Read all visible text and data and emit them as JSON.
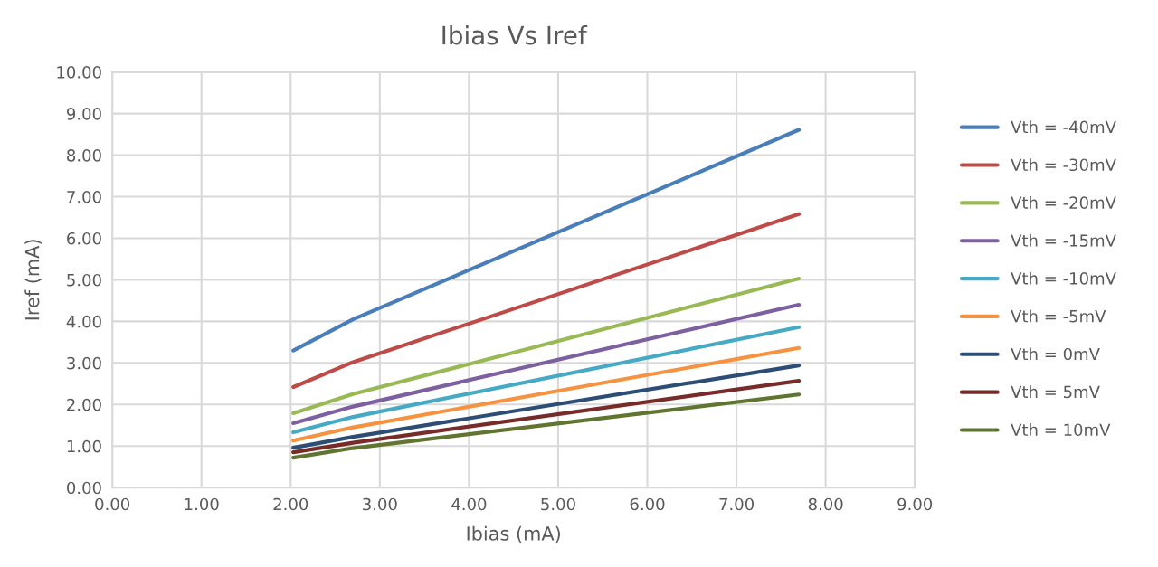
{
  "chart_data": {
    "type": "line",
    "title": "Ibias Vs Iref",
    "xlabel": "Ibias (mA)",
    "ylabel": "Iref (mA)",
    "x": [
      2.03,
      2.7,
      7.7
    ],
    "series": [
      {
        "name": "Vth = -40mV",
        "color": "#4a7ebb",
        "values": [
          3.3,
          4.05,
          8.61
        ]
      },
      {
        "name": "Vth = -30mV",
        "color": "#be4b48",
        "values": [
          2.42,
          3.02,
          6.58
        ]
      },
      {
        "name": "Vth = -20mV",
        "color": "#98b954",
        "values": [
          1.79,
          2.25,
          5.03
        ]
      },
      {
        "name": "Vth = -15mV",
        "color": "#7d60a0",
        "values": [
          1.55,
          1.95,
          4.4
        ]
      },
      {
        "name": "Vth = -10mV",
        "color": "#46aac5",
        "values": [
          1.33,
          1.7,
          3.86
        ]
      },
      {
        "name": "Vth = -5mV",
        "color": "#f69240",
        "values": [
          1.13,
          1.45,
          3.36
        ]
      },
      {
        "name": "Vth = 0mV",
        "color": "#2c4d75",
        "values": [
          0.96,
          1.22,
          2.94
        ]
      },
      {
        "name": "Vth = 5mV",
        "color": "#772c2a",
        "values": [
          0.85,
          1.08,
          2.57
        ]
      },
      {
        "name": "Vth = 10mV",
        "color": "#5f7530",
        "values": [
          0.72,
          0.95,
          2.24
        ]
      }
    ],
    "xlim": [
      0,
      9
    ],
    "ylim": [
      0,
      10
    ],
    "xticks": [
      {
        "value": 0,
        "label": "0.00"
      },
      {
        "value": 1,
        "label": "1.00"
      },
      {
        "value": 2,
        "label": "2.00"
      },
      {
        "value": 3,
        "label": "3.00"
      },
      {
        "value": 4,
        "label": "4.00"
      },
      {
        "value": 5,
        "label": "5.00"
      },
      {
        "value": 6,
        "label": "6.00"
      },
      {
        "value": 7,
        "label": "7.00"
      },
      {
        "value": 8,
        "label": "8.00"
      },
      {
        "value": 9,
        "label": "9.00"
      }
    ],
    "yticks": [
      {
        "value": 0,
        "label": "0.00"
      },
      {
        "value": 1,
        "label": "1.00"
      },
      {
        "value": 2,
        "label": "2.00"
      },
      {
        "value": 3,
        "label": "3.00"
      },
      {
        "value": 4,
        "label": "4.00"
      },
      {
        "value": 5,
        "label": "5.00"
      },
      {
        "value": 6,
        "label": "6.00"
      },
      {
        "value": 7,
        "label": "7.00"
      },
      {
        "value": 8,
        "label": "8.00"
      },
      {
        "value": 9,
        "label": "9.00"
      },
      {
        "value": 10,
        "label": "10.00"
      }
    ],
    "grid": true,
    "legend": "right",
    "marker": "none",
    "line_style": "solid"
  }
}
